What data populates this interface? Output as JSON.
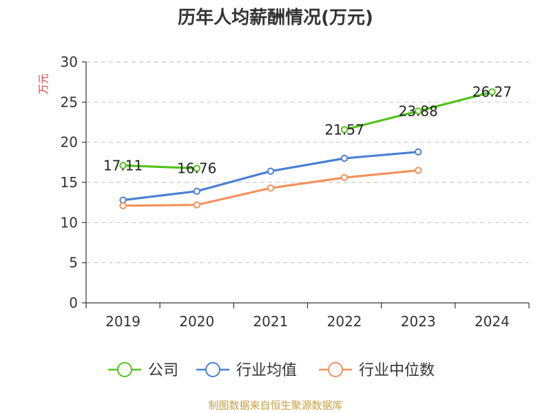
{
  "chart_data": {
    "type": "line",
    "title": "历年人均薪酬情况(万元)",
    "ylabel": "万元",
    "xlabel": "",
    "categories": [
      "2019",
      "2020",
      "2021",
      "2022",
      "2023",
      "2024"
    ],
    "ylim": [
      0,
      30
    ],
    "yticks": [
      0,
      5,
      10,
      15,
      20,
      25,
      30
    ],
    "grid": true,
    "legend_position": "bottom",
    "series": [
      {
        "name": "公司",
        "color": "#52c41a",
        "values": [
          17.11,
          16.76,
          null,
          21.57,
          23.88,
          26.27
        ],
        "labels": [
          "17.11",
          "16.76",
          "",
          "21.57",
          "23.88",
          "26.27"
        ]
      },
      {
        "name": "行业均值",
        "color": "#4a7fd4",
        "values": [
          12.8,
          13.9,
          16.4,
          18.0,
          18.8,
          null
        ]
      },
      {
        "name": "行业中位数",
        "color": "#f5915c",
        "values": [
          12.1,
          12.2,
          14.3,
          15.6,
          16.5,
          null
        ]
      }
    ]
  },
  "source": "制图数据来自恒生聚源数据库"
}
